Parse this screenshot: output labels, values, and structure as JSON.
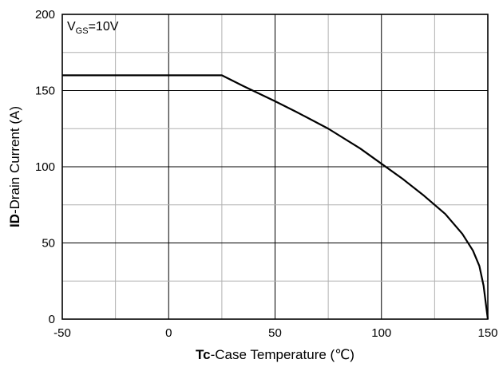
{
  "chart_data": {
    "type": "line",
    "title": "",
    "xlabel_bold": "Tc",
    "xlabel_rest": "-Case Temperature (℃)",
    "ylabel_bold": "ID",
    "ylabel_rest": "-Drain Current (A)",
    "xlim": [
      -50,
      150
    ],
    "ylim": [
      0,
      200
    ],
    "x_ticks": [
      -50,
      0,
      50,
      100,
      150
    ],
    "x_tick_labels": [
      "-50",
      "0",
      "50",
      "100",
      "150"
    ],
    "y_ticks": [
      0,
      50,
      100,
      150,
      200
    ],
    "y_tick_labels": [
      "0",
      "50",
      "100",
      "150",
      "200"
    ],
    "x_minor_grid_step": 25,
    "y_minor_grid_step": 25,
    "grid": true,
    "annotation": {
      "main": "V",
      "sub": "GS",
      "rest": "=10V",
      "placement": "top-left"
    },
    "series": [
      {
        "color": "#000000",
        "x": [
          -50,
          25,
          35,
          50,
          60,
          75,
          90,
          100,
          110,
          120,
          130,
          138,
          143,
          146,
          148,
          150
        ],
        "y": [
          160,
          160,
          153,
          143,
          136,
          125,
          112,
          102,
          92,
          81,
          69,
          56,
          45,
          35,
          22,
          0
        ]
      }
    ]
  }
}
